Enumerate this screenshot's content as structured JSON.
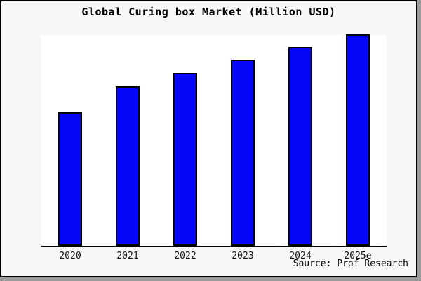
{
  "title": "Global Curing box Market (Million USD)",
  "source": "Source: Prof Research",
  "colors": {
    "page_background": "#f7f7f7",
    "plot_background": "#ffffff",
    "bar_fill": "#0606f8",
    "bar_edge": "#000000",
    "axis_line": "#000000",
    "frame_border": "#000000",
    "frame_shadow": "#9c9c9c",
    "text": "#000000"
  },
  "chart_data": {
    "type": "bar",
    "title": "Global Curing box Market (Million USD)",
    "categories": [
      "2020",
      "2021",
      "2022",
      "2023",
      "2024",
      "2025e"
    ],
    "values": [
      62.9,
      75.2,
      81.5,
      87.7,
      93.7,
      99.7
    ],
    "value_unit": "relative height, % of plot area (no y-axis scale shown in image)",
    "xlabel": "",
    "ylabel": "",
    "ylim": [
      0,
      100
    ],
    "grid": false,
    "legend": false,
    "y_axis_visible": false,
    "annotations": [
      "Source: Prof Research"
    ]
  }
}
